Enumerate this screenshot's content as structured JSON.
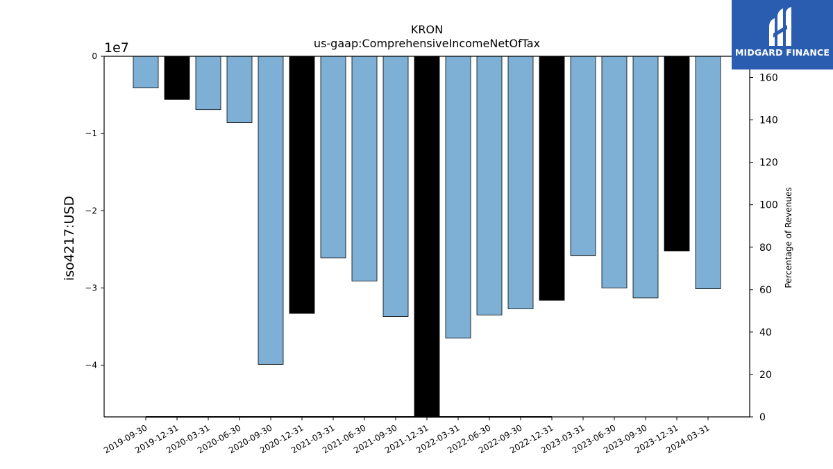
{
  "chart_data": {
    "type": "bar",
    "title": "KRON",
    "subtitle": "us-gaap:ComprehensiveIncomeNetOfTax",
    "ylabel": "iso4217:USD",
    "y_offset_label": "1e7",
    "y2label": "Percentage of Revenues",
    "categories": [
      "2019-09-30",
      "2019-12-31",
      "2020-03-31",
      "2020-06-30",
      "2020-09-30",
      "2020-12-31",
      "2021-03-31",
      "2021-06-30",
      "2021-09-30",
      "2021-12-31",
      "2022-03-31",
      "2022-06-30",
      "2022-09-30",
      "2022-12-31",
      "2023-03-31",
      "2023-06-30",
      "2023-09-30",
      "2023-12-31",
      "2024-03-31"
    ],
    "values": [
      -4100000,
      -5600000,
      -6900000,
      -8600000,
      -39900000,
      -33300000,
      -26100000,
      -29100000,
      -33700000,
      -46700000,
      -36500000,
      -33500000,
      -32700000,
      -31600000,
      -25800000,
      -30000000,
      -31300000,
      -25200000,
      -30100000
    ],
    "period_type": [
      "Q",
      "FY",
      "Q",
      "Q",
      "Q",
      "FY",
      "Q",
      "Q",
      "Q",
      "FY",
      "Q",
      "Q",
      "Q",
      "FY",
      "Q",
      "Q",
      "Q",
      "FY",
      "Q"
    ],
    "colors": {
      "Q": "#7eb0d5",
      "FY": "#000000"
    },
    "ylim": [
      -46700000,
      0
    ],
    "yticks": [
      0,
      -10000000,
      -20000000,
      -30000000,
      -40000000
    ],
    "ytick_labels": [
      "0",
      "−1",
      "−2",
      "−3",
      "−4"
    ],
    "y2lim": [
      0,
      170
    ],
    "y2ticks": [
      0,
      20,
      40,
      60,
      80,
      100,
      120,
      140,
      160
    ],
    "percentage_series": {
      "x_range": [
        "2019-09-30",
        "2022-12-31"
      ],
      "values": [
        0,
        0,
        0,
        0,
        0,
        0,
        0,
        0,
        0,
        0,
        0,
        0,
        0,
        0
      ]
    },
    "grid": false
  },
  "logo": {
    "text": "MIDGARD FINANCE"
  }
}
